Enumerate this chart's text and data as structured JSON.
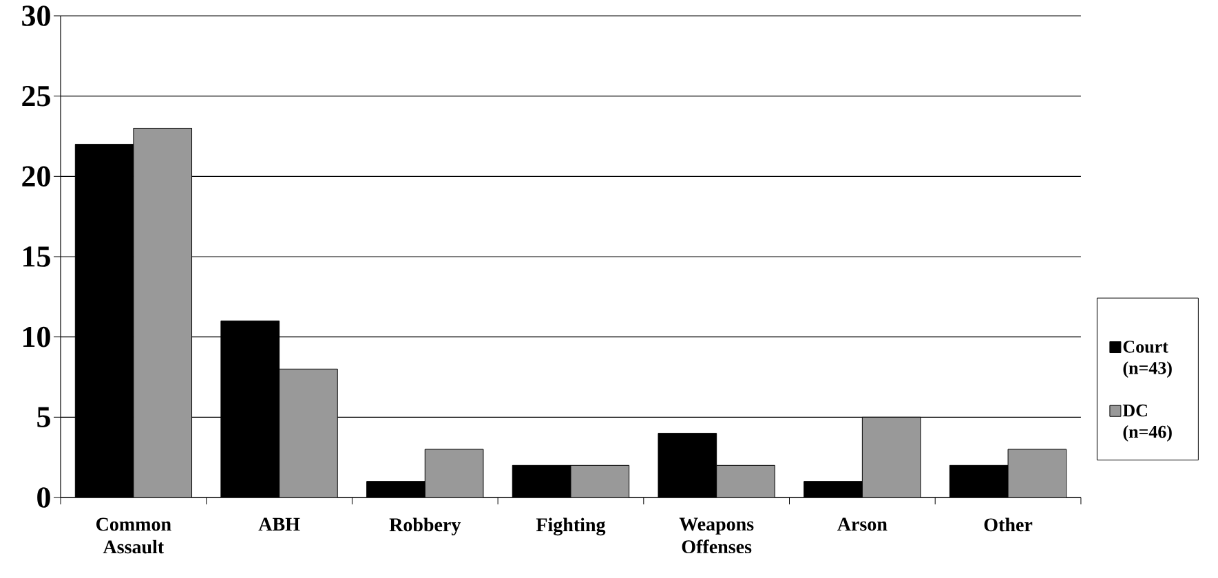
{
  "chart_data": {
    "type": "bar",
    "categories": [
      "Common Assault",
      "ABH",
      "Robbery",
      "Fighting",
      "Weapons Offenses",
      "Arson",
      "Other"
    ],
    "series": [
      {
        "name": "Court (n=43)",
        "color": "#000000",
        "values": [
          22,
          11,
          1,
          2,
          4,
          1,
          2
        ]
      },
      {
        "name": "DC (n=46)",
        "color": "#999999",
        "values": [
          23,
          8,
          3,
          2,
          2,
          5,
          3
        ]
      }
    ],
    "ylim": [
      0,
      30
    ],
    "yticks": [
      0,
      5,
      10,
      15,
      20,
      25,
      30
    ],
    "grid": "y",
    "legend": "right"
  }
}
